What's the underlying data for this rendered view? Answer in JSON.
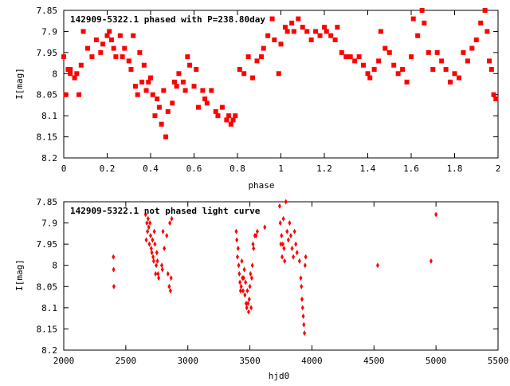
{
  "chart_data": [
    {
      "type": "scatter",
      "title": "142909-5322.1 phased with P=238.80day",
      "xlabel": "phase",
      "ylabel": "I[mag]",
      "xlim": [
        0,
        2
      ],
      "ylim": [
        8.2,
        7.85
      ],
      "y_inverted": true,
      "x_ticks": [
        "0",
        "0.2",
        "0.4",
        "0.6",
        "0.8",
        "1",
        "1.2",
        "1.4",
        "1.6",
        "1.8",
        "2"
      ],
      "y_ticks": [
        "7.85",
        "7.9",
        "7.95",
        "8",
        "8.05",
        "8.1",
        "8.15",
        "8.2"
      ],
      "marker_color": "#ff0000",
      "marker": "square",
      "x": [
        0.0,
        0.01,
        0.02,
        0.03,
        0.03,
        0.05,
        0.06,
        0.07,
        0.08,
        0.09,
        0.11,
        0.13,
        0.15,
        0.17,
        0.18,
        0.2,
        0.21,
        0.22,
        0.23,
        0.24,
        0.26,
        0.27,
        0.28,
        0.3,
        0.31,
        0.32,
        0.33,
        0.34,
        0.35,
        0.36,
        0.37,
        0.38,
        0.39,
        0.4,
        0.41,
        0.42,
        0.43,
        0.44,
        0.45,
        0.46,
        0.47,
        0.48,
        0.5,
        0.51,
        0.52,
        0.53,
        0.55,
        0.56,
        0.57,
        0.58,
        0.6,
        0.61,
        0.62,
        0.64,
        0.65,
        0.66,
        0.68,
        0.7,
        0.71,
        0.73,
        0.75,
        0.76,
        0.77,
        0.78,
        0.79,
        0.81,
        0.83,
        0.85,
        0.87,
        0.89,
        0.91,
        0.92,
        0.94,
        0.96,
        0.97,
        0.99,
        1.0,
        1.02,
        1.03,
        1.05,
        1.06,
        1.08,
        1.1,
        1.12,
        1.14,
        1.16,
        1.18,
        1.2,
        1.21,
        1.23,
        1.25,
        1.26,
        1.28,
        1.3,
        1.32,
        1.34,
        1.36,
        1.38,
        1.4,
        1.41,
        1.43,
        1.45,
        1.46,
        1.48,
        1.5,
        1.52,
        1.54,
        1.56,
        1.58,
        1.6,
        1.61,
        1.63,
        1.65,
        1.66,
        1.68,
        1.7,
        1.72,
        1.74,
        1.76,
        1.78,
        1.8,
        1.82,
        1.84,
        1.86,
        1.88,
        1.9,
        1.92,
        1.94,
        1.95,
        1.96,
        1.97,
        1.98,
        1.99
      ],
      "y": [
        7.96,
        8.05,
        7.99,
        8.0,
        7.99,
        8.01,
        8.0,
        8.05,
        7.98,
        7.9,
        7.94,
        7.96,
        7.92,
        7.95,
        7.93,
        7.91,
        7.9,
        7.92,
        7.94,
        7.96,
        7.91,
        7.96,
        7.94,
        7.97,
        7.99,
        7.91,
        8.03,
        8.05,
        7.95,
        8.02,
        7.98,
        8.04,
        8.02,
        8.01,
        8.05,
        8.1,
        8.06,
        8.08,
        8.12,
        8.04,
        8.15,
        8.09,
        8.07,
        8.02,
        8.03,
        8.0,
        8.02,
        8.04,
        7.96,
        7.98,
        8.03,
        7.99,
        8.08,
        8.04,
        8.06,
        8.07,
        8.04,
        8.09,
        8.1,
        8.08,
        8.11,
        8.1,
        8.12,
        8.11,
        8.1,
        7.99,
        8.0,
        7.96,
        8.01,
        7.97,
        7.96,
        7.94,
        7.91,
        7.87,
        7.92,
        8.0,
        7.93,
        7.89,
        7.9,
        7.88,
        7.9,
        7.87,
        7.89,
        7.9,
        7.92,
        7.9,
        7.91,
        7.89,
        7.9,
        7.91,
        7.92,
        7.89,
        7.95,
        7.96,
        7.96,
        7.97,
        7.96,
        7.98,
        8.0,
        8.01,
        7.99,
        7.97,
        7.9,
        7.94,
        7.95,
        7.98,
        8.0,
        7.99,
        8.02,
        7.96,
        7.87,
        7.91,
        7.85,
        7.88,
        7.95,
        7.99,
        7.95,
        7.97,
        7.99,
        8.02,
        8.0,
        8.01,
        7.95,
        7.97,
        7.94,
        7.92,
        7.88,
        7.85,
        7.9,
        7.97,
        7.99,
        8.05,
        8.06
      ]
    },
    {
      "type": "scatter",
      "title": "142909-5322.1 not phased light curve",
      "xlabel": "hjd0",
      "ylabel": "I[mag]",
      "xlim": [
        2000,
        5500
      ],
      "ylim": [
        8.2,
        7.85
      ],
      "y_inverted": true,
      "x_ticks": [
        "2000",
        "2500",
        "3000",
        "3500",
        "4000",
        "4500",
        "5000",
        "5500"
      ],
      "y_ticks": [
        "7.85",
        "7.9",
        "7.95",
        "8",
        "8.05",
        "8.1",
        "8.15",
        "8.2"
      ],
      "marker_color": "#ff0000",
      "marker": "diamond",
      "x": [
        2400,
        2402,
        2404,
        2660,
        2665,
        2670,
        2675,
        2680,
        2685,
        2690,
        2695,
        2700,
        2705,
        2710,
        2715,
        2720,
        2725,
        2730,
        2735,
        2740,
        2745,
        2750,
        2755,
        2760,
        2765,
        2790,
        2795,
        2800,
        2810,
        2830,
        2840,
        2850,
        2855,
        2860,
        2865,
        2870,
        3390,
        3395,
        3400,
        3405,
        3410,
        3415,
        3420,
        3425,
        3430,
        3435,
        3440,
        3445,
        3450,
        3455,
        3460,
        3465,
        3470,
        3475,
        3480,
        3485,
        3490,
        3495,
        3500,
        3505,
        3510,
        3515,
        3520,
        3525,
        3530,
        3540,
        3550,
        3560,
        3620,
        3740,
        3745,
        3750,
        3755,
        3760,
        3765,
        3770,
        3775,
        3780,
        3790,
        3800,
        3810,
        3820,
        3830,
        3840,
        3850,
        3860,
        3870,
        3880,
        3900,
        3910,
        3915,
        3920,
        3925,
        3930,
        3935,
        3940,
        3945,
        3950,
        4530,
        4960,
        5000
      ],
      "y": [
        7.98,
        8.01,
        8.05,
        7.88,
        7.94,
        7.9,
        7.92,
        7.89,
        7.91,
        7.95,
        7.9,
        7.93,
        7.96,
        7.97,
        7.94,
        7.98,
        7.99,
        7.92,
        7.95,
        8.02,
        8.0,
        7.97,
        7.99,
        8.02,
        8.03,
        8.0,
        8.01,
        7.92,
        7.96,
        7.93,
        8.02,
        8.05,
        7.9,
        8.06,
        8.03,
        7.89,
        7.92,
        7.94,
        7.98,
        7.96,
        8.0,
        8.02,
        8.04,
        8.06,
        8.05,
        7.99,
        8.03,
        8.06,
        8.03,
        8.01,
        8.07,
        8.04,
        8.09,
        8.1,
        8.06,
        8.09,
        8.11,
        8.08,
        8.05,
        8.02,
        8.1,
        8.03,
        8.0,
        7.95,
        7.96,
        7.93,
        7.93,
        7.92,
        7.91,
        7.86,
        7.9,
        7.95,
        7.93,
        7.98,
        7.95,
        7.89,
        7.96,
        7.99,
        7.85,
        7.92,
        7.94,
        7.9,
        7.93,
        7.96,
        7.98,
        7.92,
        7.95,
        7.97,
        7.99,
        8.03,
        8.05,
        8.08,
        8.1,
        8.12,
        8.14,
        8.16,
        8.0,
        7.98,
        8.0,
        7.99,
        7.88
      ]
    }
  ]
}
